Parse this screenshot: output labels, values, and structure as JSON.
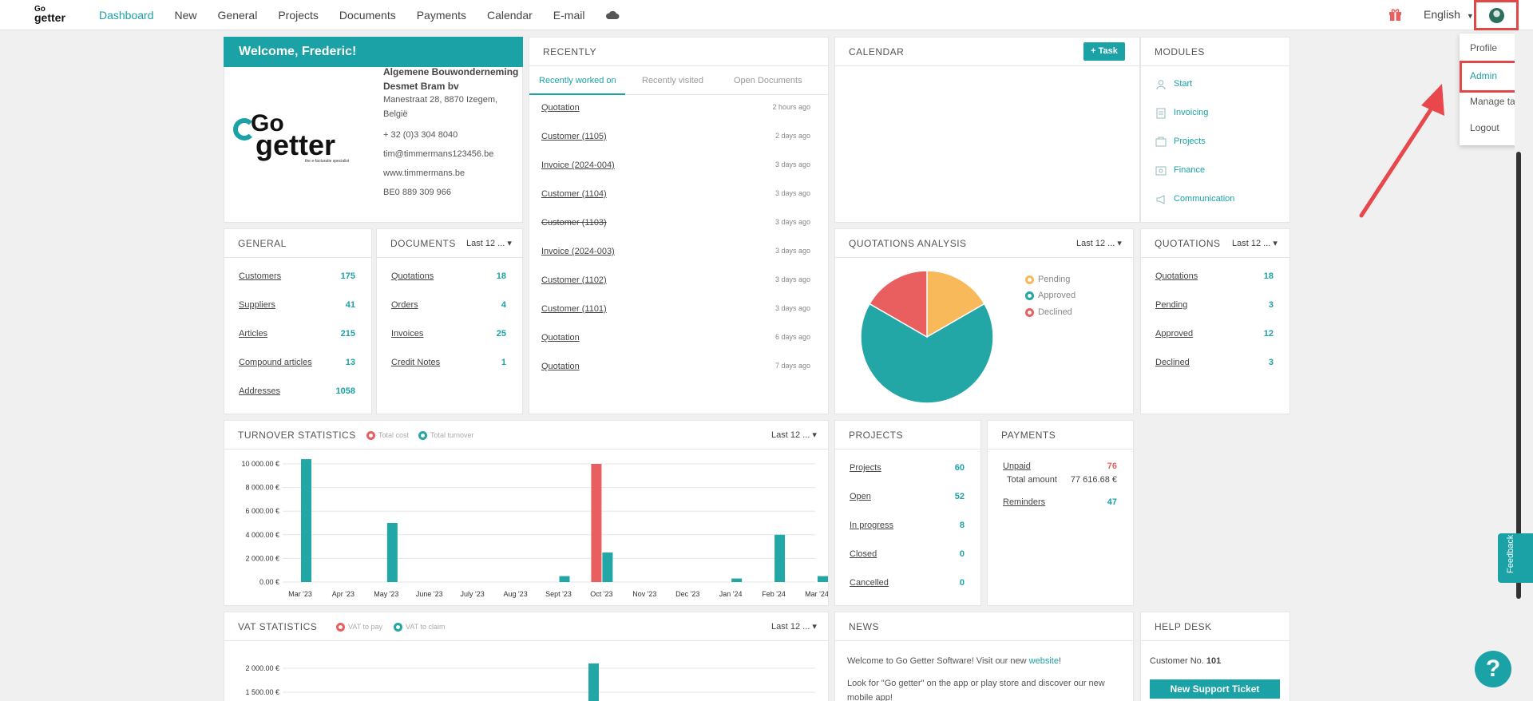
{
  "nav": {
    "logo_top": "Go",
    "logo_bottom": "getter",
    "items": [
      "Dashboard",
      "New",
      "General",
      "Projects",
      "Documents",
      "Payments",
      "Calendar",
      "E-mail"
    ],
    "language": "English",
    "active_color": "#1ba2a6"
  },
  "user_menu": {
    "items": [
      "Profile",
      "Admin",
      "Manage tags",
      "Logout"
    ],
    "highlighted": "Admin"
  },
  "welcome": {
    "title": "Welcome, Frederic!",
    "company_line1": "Algemene Bouwonderneming",
    "company_line2": "Desmet Bram bv",
    "address_line1": "Manestraat 28, 8870 Izegem,",
    "address_line2": "België",
    "phone": "+ 32 (0)3 304 8040",
    "email": "tim@timmermans123456.be",
    "website": "www.timmermans.be",
    "vat": "BE0 889 309 966",
    "logo_top": "Go",
    "logo_bottom": "getter",
    "logo_tagline": "the e-facturatie specialist"
  },
  "recently": {
    "title": "RECENTLY",
    "tabs": [
      "Recently worked on",
      "Recently visited",
      "Open Documents"
    ],
    "items": [
      {
        "title": "Quotation",
        "ago": "2 hours ago",
        "strike": false
      },
      {
        "title": "Customer (1105)",
        "ago": "2 days ago",
        "strike": false
      },
      {
        "title": "Invoice (2024-004)",
        "ago": "3 days ago",
        "strike": false
      },
      {
        "title": "Customer (1104)",
        "ago": "3 days ago",
        "strike": false
      },
      {
        "title": "Customer (1103)",
        "ago": "3 days ago",
        "strike": true
      },
      {
        "title": "Invoice (2024-003)",
        "ago": "3 days ago",
        "strike": false
      },
      {
        "title": "Customer (1102)",
        "ago": "3 days ago",
        "strike": false
      },
      {
        "title": "Customer (1101)",
        "ago": "3 days ago",
        "strike": false
      },
      {
        "title": "Quotation",
        "ago": "6 days ago",
        "strike": false
      },
      {
        "title": "Quotation",
        "ago": "7 days ago",
        "strike": false
      }
    ]
  },
  "calendar": {
    "title": "CALENDAR",
    "task_button": "+ Task"
  },
  "modules": {
    "title": "MODULES",
    "items": [
      "Start",
      "Invoicing",
      "Projects",
      "Finance",
      "Communication"
    ]
  },
  "general": {
    "title": "GENERAL",
    "rows": [
      {
        "label": "Customers",
        "value": "175"
      },
      {
        "label": "Suppliers",
        "value": "41"
      },
      {
        "label": "Articles",
        "value": "215"
      },
      {
        "label": "Compound articles",
        "value": "13"
      },
      {
        "label": "Addresses",
        "value": "1058"
      }
    ]
  },
  "documents": {
    "title": "DOCUMENTS",
    "period": "Last 12 ...",
    "rows": [
      {
        "label": "Quotations",
        "value": "18"
      },
      {
        "label": "Orders",
        "value": "4"
      },
      {
        "label": "Invoices",
        "value": "25"
      },
      {
        "label": "Credit Notes",
        "value": "1"
      }
    ]
  },
  "quotations_analysis": {
    "title": "QUOTATIONS ANALYSIS",
    "period": "Last 12 ...",
    "legend": [
      {
        "label": "Pending",
        "color": "#f8b95a"
      },
      {
        "label": "Approved",
        "color": "#23a6a6"
      },
      {
        "label": "Declined",
        "color": "#e95f60"
      }
    ]
  },
  "quotations": {
    "title": "QUOTATIONS",
    "period": "Last 12 ...",
    "rows": [
      {
        "label": "Quotations",
        "value": "18"
      },
      {
        "label": "Pending",
        "value": "3"
      },
      {
        "label": "Approved",
        "value": "12"
      },
      {
        "label": "Declined",
        "value": "3"
      }
    ]
  },
  "turnover": {
    "title": "TURNOVER STATISTICS",
    "period": "Last 12 ...",
    "legend": [
      "Total cost",
      "Total turnover"
    ]
  },
  "projects": {
    "title": "PROJECTS",
    "rows": [
      {
        "label": "Projects",
        "value": "60"
      },
      {
        "label": "Open",
        "value": "52"
      },
      {
        "label": "In progress",
        "value": "8"
      },
      {
        "label": "Closed",
        "value": "0"
      },
      {
        "label": "Cancelled",
        "value": "0"
      }
    ]
  },
  "payments": {
    "title": "PAYMENTS",
    "unpaid_label": "Unpaid",
    "unpaid_value": "76",
    "total_label": "Total amount",
    "total_value": "77 616.68 €",
    "reminders_label": "Reminders",
    "reminders_value": "47"
  },
  "vat": {
    "title": "VAT STATISTICS",
    "period": "Last 12 ...",
    "legend": [
      "VAT to pay",
      "VAT to claim"
    ]
  },
  "news": {
    "title": "NEWS",
    "line1_prefix": "Welcome to Go Getter Software! Visit our new ",
    "line1_link": "website",
    "line1_suffix": "!",
    "line2": "Look for \"Go getter\" on the app or play store and discover our new",
    "line3": "mobile app!"
  },
  "helpdesk": {
    "title": "HELP DESK",
    "customer_label": "Customer No.",
    "customer_no": "101",
    "button": "New Support Ticket"
  },
  "feedback_label": "Feedback",
  "help_label": "?",
  "chart_data": [
    {
      "type": "bar",
      "title": "TURNOVER STATISTICS",
      "categories": [
        "Mar '23",
        "Apr '23",
        "May '23",
        "June '23",
        "July '23",
        "Aug '23",
        "Sept '23",
        "Oct '23",
        "Nov '23",
        "Dec '23",
        "Jan '24",
        "Feb '24",
        "Mar '24"
      ],
      "y_ticks": [
        "10 000.00 €",
        "8 000.00 €",
        "6 000.00 €",
        "4 000.00 €",
        "2 000.00 €",
        "0.00 €"
      ],
      "ylim": [
        0,
        10000
      ],
      "series": [
        {
          "name": "Total cost",
          "color": "#e95f60",
          "values": [
            0,
            0,
            0,
            0,
            0,
            0,
            0,
            10000,
            0,
            0,
            0,
            0,
            0
          ]
        },
        {
          "name": "Total turnover",
          "color": "#23a6a6",
          "values": [
            10400,
            0,
            5000,
            0,
            0,
            0,
            500,
            2500,
            0,
            0,
            300,
            4000,
            500
          ]
        }
      ]
    },
    {
      "type": "pie",
      "title": "QUOTATIONS ANALYSIS",
      "labels": [
        "Pending",
        "Approved",
        "Declined"
      ],
      "values": [
        3,
        12,
        3
      ],
      "colors": [
        "#f8b95a",
        "#23a6a6",
        "#e95f60"
      ]
    },
    {
      "type": "bar",
      "title": "VAT STATISTICS",
      "y_ticks": [
        "2 000.00 €",
        "1 500.00 €"
      ],
      "series": [
        {
          "name": "VAT to pay",
          "color": "#e95f60",
          "values": []
        },
        {
          "name": "VAT to claim",
          "color": "#23a6a6",
          "values": [
            2100
          ]
        }
      ]
    }
  ]
}
